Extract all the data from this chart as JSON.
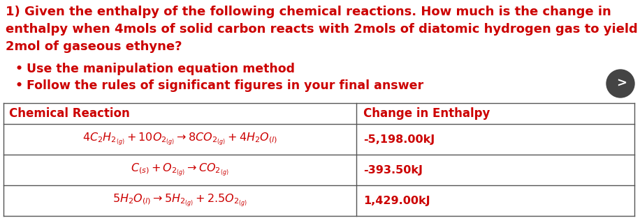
{
  "title_line1": "1) Given the enthalpy of the following chemical reactions. How much is the change in",
  "title_line2": "enthalpy when 4mols of solid carbon reacts with 2mols of diatomic hydrogen gas to yield",
  "title_line3": "2mol of gaseous ethyne?",
  "bullet1": "Use the manipulation equation method",
  "bullet2": "Follow the rules of significant figures in your final answer",
  "col1_header": "Chemical Reaction",
  "col2_header": "Change in Enthalpy",
  "row1_reaction": "$4C_2H_{2_{(g)}} + 10O_{2_{(g)}} \\rightarrow 8CO_{2_{(g)}} + 4H_2O_{(l)}$",
  "row1_enthalpy": "-5,198.00kJ",
  "row2_reaction": "$C_{(s)} + O_{2_{(g)}} \\rightarrow CO_{2_{(g)}}$",
  "row2_enthalpy": "-393.50kJ",
  "row3_reaction": "$5H_2O_{(l)} \\rightarrow 5H_{2_{(g)}} + 2.5O_{2_{(g)}}$",
  "row3_enthalpy": "1,429.00kJ",
  "text_color": "#cc0000",
  "bg_color": "#ffffff",
  "table_border_color": "#555555",
  "arrow_button_color": "#444444",
  "font_size_title": 13.0,
  "font_size_bullet": 12.5,
  "font_size_table_header": 12.0,
  "font_size_table_row": 11.5
}
